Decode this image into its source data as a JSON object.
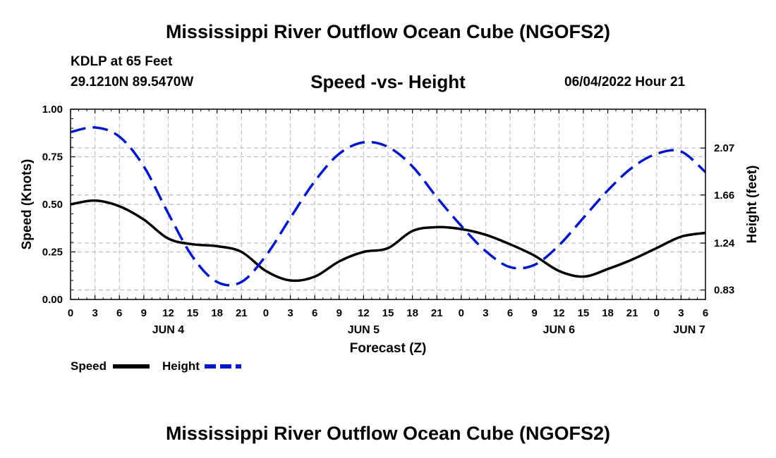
{
  "page": {
    "title_top": "Mississippi River Outflow Ocean Cube (NGOFS2)",
    "title_bottom": "Mississippi River Outflow Ocean Cube (NGOFS2)",
    "station": "KDLP at 65 Feet",
    "coords": "29.1210N  89.5470W",
    "subtitle": "Speed -vs- Height",
    "datetime": "06/04/2022 Hour 21"
  },
  "colors": {
    "speed": "#000000",
    "height": "#0018c8",
    "grid": "#c0c0c0",
    "background": "#ffffff"
  },
  "chart_data": {
    "type": "line",
    "xlabel": "Forecast (Z)",
    "ylabel": "Speed (Knots)",
    "y2label": "Height (feet)",
    "x_unit": "hours from 06/04 00Z",
    "xlim": [
      0,
      78
    ],
    "ylim": [
      0,
      1
    ],
    "y2lim": [
      0.7475,
      2.4095
    ],
    "x_tick_hours": [
      0,
      3,
      6,
      9,
      12,
      15,
      18,
      21,
      24,
      27,
      30,
      33,
      36,
      39,
      42,
      45,
      48,
      51,
      54,
      57,
      60,
      63,
      66,
      69,
      72,
      75,
      78
    ],
    "x_tick_labels": [
      "0",
      "3",
      "6",
      "9",
      "12",
      "15",
      "18",
      "21",
      "0",
      "3",
      "6",
      "9",
      "12",
      "15",
      "18",
      "21",
      "0",
      "3",
      "6",
      "9",
      "12",
      "15",
      "18",
      "21",
      "0",
      "3",
      "6"
    ],
    "y_ticks": [
      0.0,
      0.25,
      0.5,
      0.75,
      1.0
    ],
    "y_tick_labels": [
      "0.00",
      "0.25",
      "0.50",
      "0.75",
      "1.00"
    ],
    "y2_ticks": [
      0.83,
      1.24,
      1.66,
      2.07
    ],
    "y2_tick_labels": [
      "0.83",
      "1.24",
      "1.66",
      "2.07"
    ],
    "day_labels": [
      {
        "label": "JUN 4",
        "hour": 12
      },
      {
        "label": "JUN 5",
        "hour": 36
      },
      {
        "label": "JUN 6",
        "hour": 60
      },
      {
        "label": "JUN 7",
        "hour": 76
      }
    ],
    "legend": [
      {
        "name": "Speed",
        "style": "solid"
      },
      {
        "name": "Height",
        "style": "dashed"
      }
    ],
    "series": [
      {
        "name": "Speed",
        "axis": "left",
        "x": [
          0,
          3,
          6,
          9,
          12,
          15,
          18,
          21,
          24,
          27,
          30,
          33,
          36,
          39,
          42,
          45,
          48,
          51,
          54,
          57,
          60,
          63,
          66,
          69,
          72,
          75,
          78
        ],
        "values": [
          0.5,
          0.52,
          0.49,
          0.42,
          0.32,
          0.29,
          0.28,
          0.25,
          0.15,
          0.1,
          0.12,
          0.2,
          0.25,
          0.27,
          0.36,
          0.38,
          0.37,
          0.34,
          0.29,
          0.23,
          0.15,
          0.12,
          0.16,
          0.21,
          0.27,
          0.33,
          0.35
        ]
      },
      {
        "name": "Height",
        "axis": "right",
        "x": [
          0,
          3,
          6,
          9,
          12,
          15,
          18,
          21,
          24,
          27,
          30,
          33,
          36,
          39,
          42,
          45,
          48,
          51,
          54,
          57,
          60,
          63,
          66,
          69,
          72,
          75,
          78
        ],
        "values": [
          2.21,
          2.25,
          2.17,
          1.91,
          1.5,
          1.12,
          0.9,
          0.9,
          1.13,
          1.46,
          1.78,
          2.02,
          2.12,
          2.08,
          1.91,
          1.64,
          1.39,
          1.17,
          1.03,
          1.05,
          1.22,
          1.46,
          1.7,
          1.9,
          2.02,
          2.04,
          1.86
        ]
      }
    ]
  }
}
